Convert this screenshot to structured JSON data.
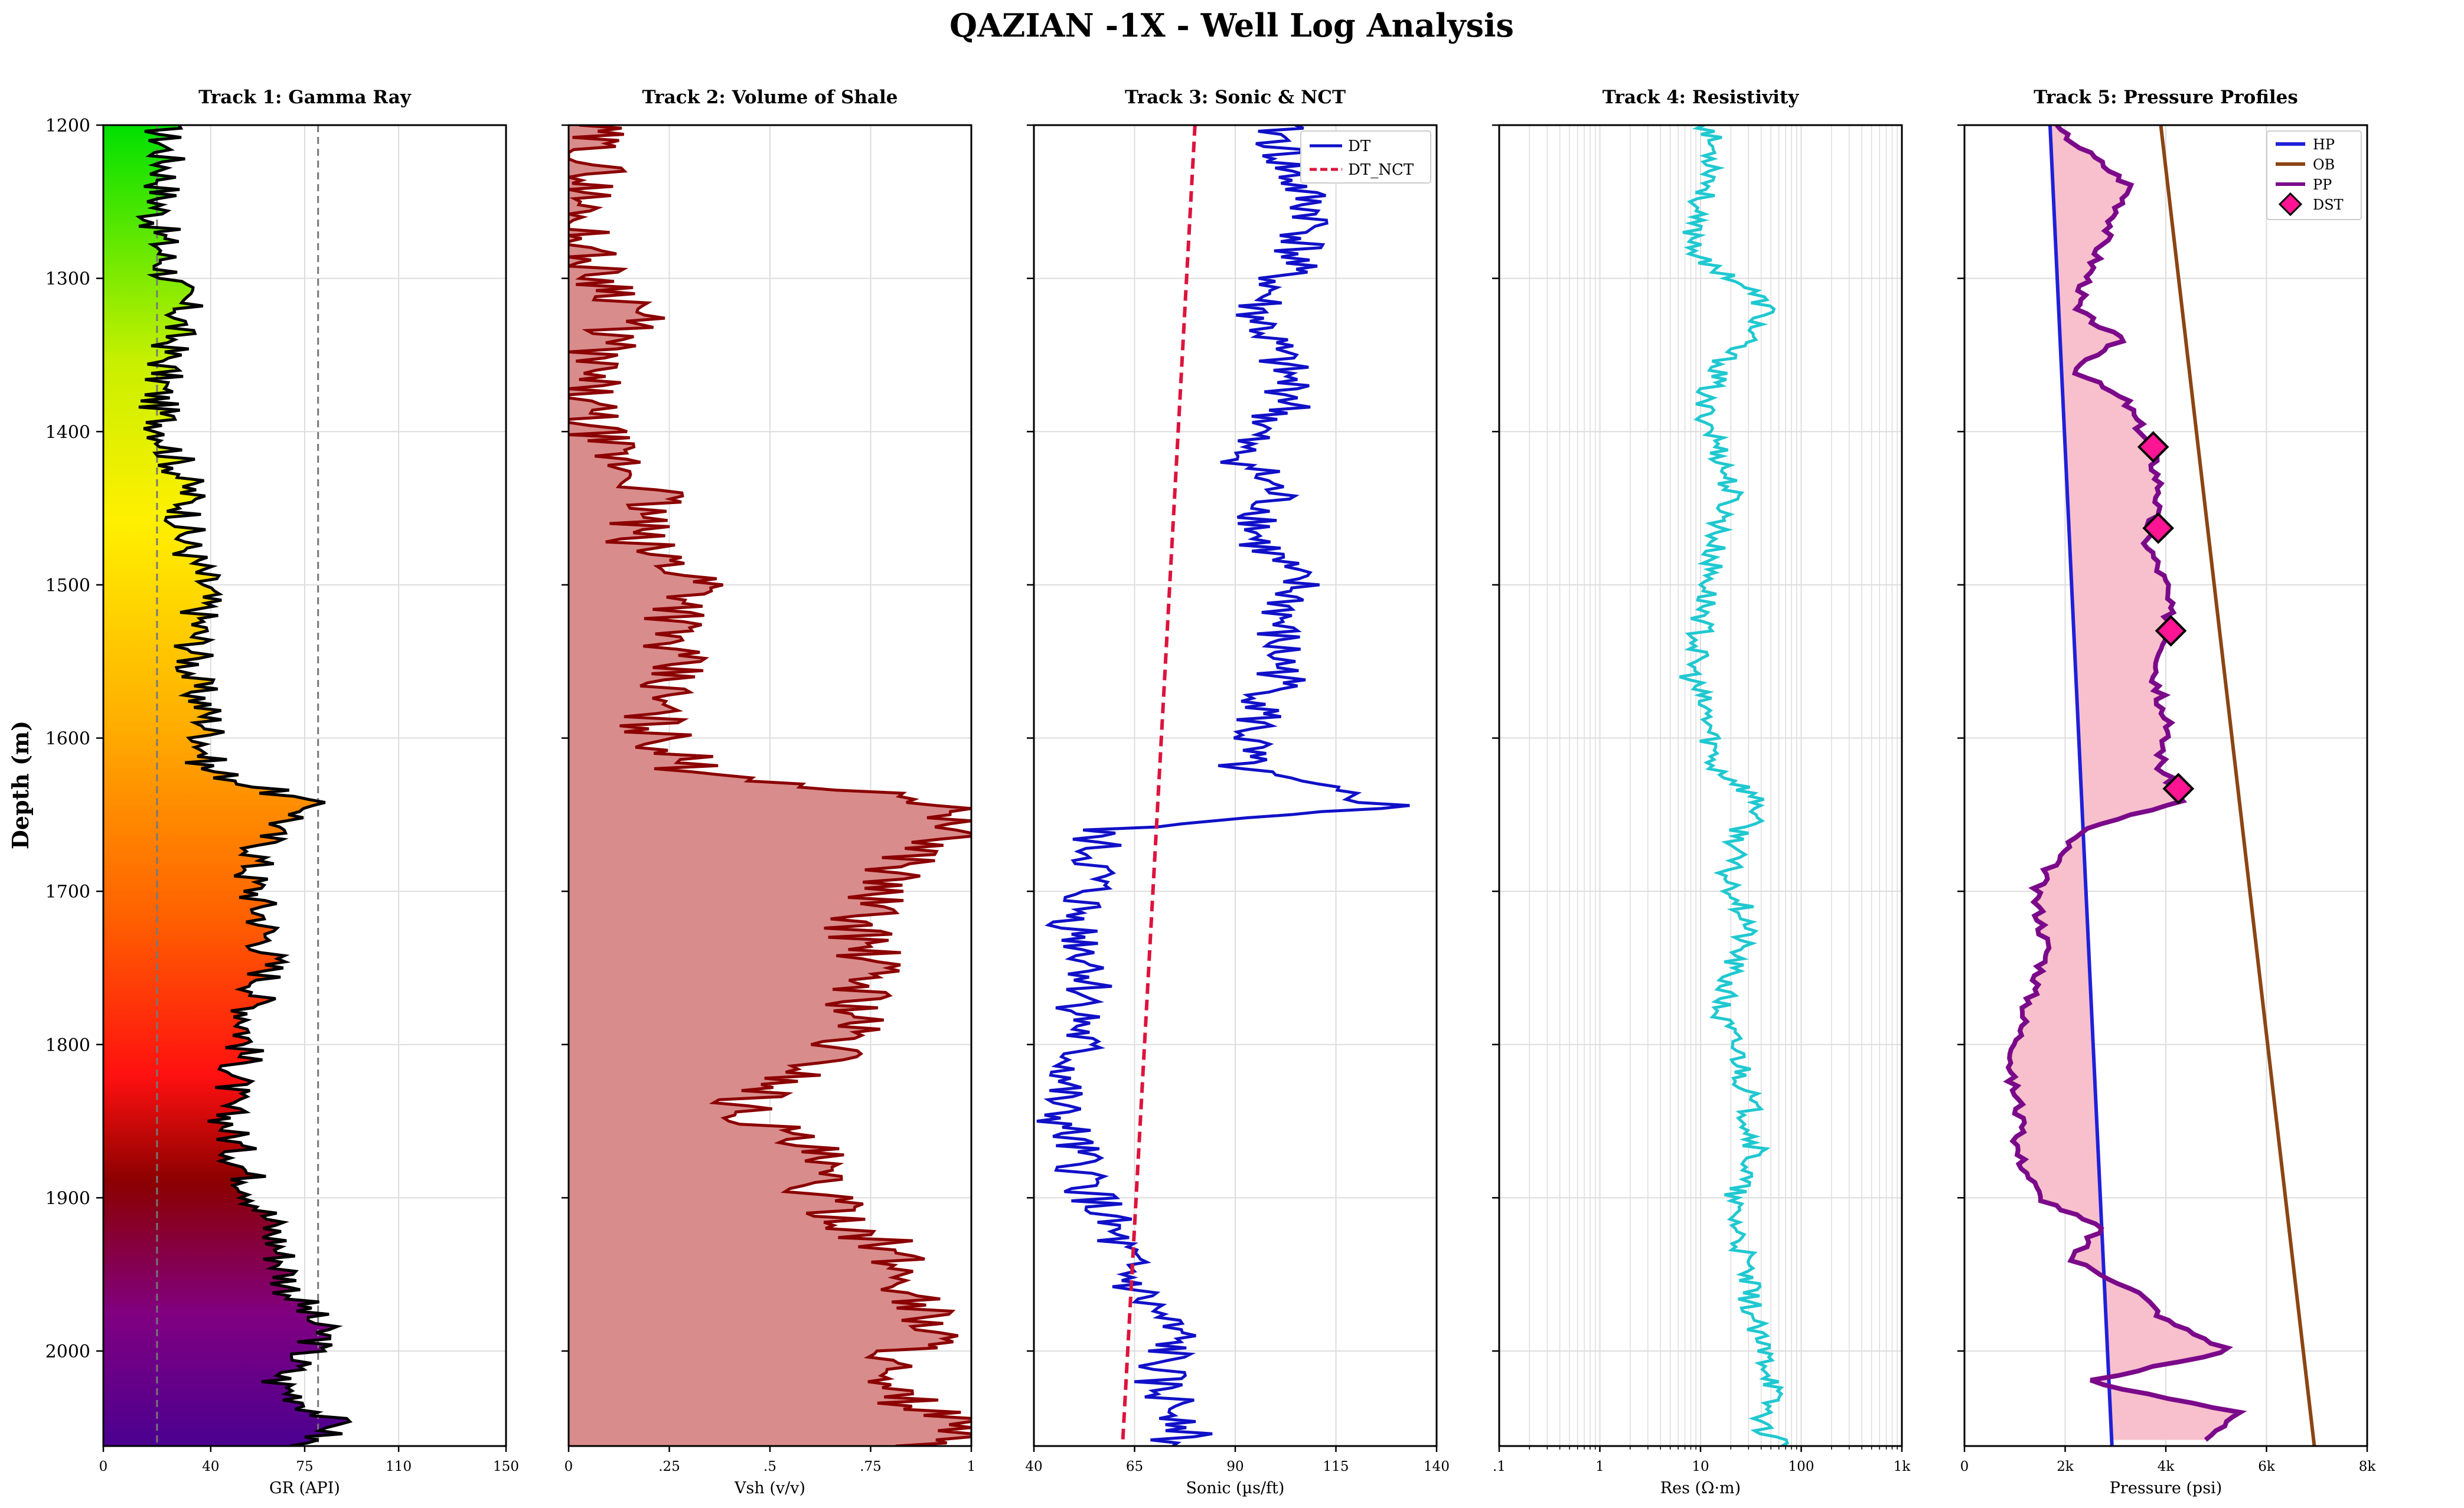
{
  "chart_data": {
    "type": "line",
    "title": "QAZIAN -1X - Well Log Analysis",
    "ylabel": "Depth (m)",
    "ylim": [
      2062,
      1200
    ],
    "yticks": [
      1200,
      1300,
      1400,
      1500,
      1600,
      1700,
      1800,
      1900,
      2000
    ],
    "colors": {
      "gr_line": "#000000",
      "vsh_line": "#8b0000",
      "vsh_fill": "#d98c8c",
      "dt_line": "#1010c8",
      "nct_line": "#dc143c",
      "res_line": "#20c8d0",
      "hp_line": "#2020d8",
      "ob_line": "#8b4513",
      "pp_line": "#7b0a8a",
      "pp_fill": "#f8c0cc",
      "dst_marker": "#ff1493",
      "grid": "#dddddd"
    },
    "tracks": [
      {
        "title": "Track 1: Gamma Ray",
        "xlabel": "GR (API)",
        "xlim": [
          0,
          150
        ],
        "xticks": [
          0,
          40,
          75,
          110,
          150
        ],
        "xtick_labels": [
          "0",
          "40",
          "75",
          "110",
          "150"
        ],
        "cutoffs": [
          20,
          80
        ],
        "series": [
          {
            "name": "GR",
            "depth": [
              1200,
              1230,
              1260,
              1290,
              1320,
              1350,
              1380,
              1410,
              1440,
              1470,
              1500,
              1530,
              1560,
              1590,
              1620,
              1645,
              1660,
              1690,
              1720,
              1750,
              1780,
              1810,
              1840,
              1870,
              1900,
              1930,
              1960,
              1990,
              2020,
              2050,
              2062
            ],
            "values": [
              22,
              24,
              20,
              23,
              30,
              24,
              20,
              25,
              32,
              30,
              38,
              35,
              33,
              40,
              38,
              80,
              62,
              55,
              60,
              62,
              55,
              52,
              45,
              50,
              58,
              65,
              70,
              82,
              65,
              88,
              72
            ]
          }
        ]
      },
      {
        "title": "Track 2: Volume of Shale",
        "xlabel": "Vsh (v/v)",
        "xlim": [
          0,
          1
        ],
        "xticks": [
          0,
          0.25,
          0.5,
          0.75,
          1
        ],
        "xtick_labels": [
          "0",
          ".25",
          ".5",
          ".75",
          "1"
        ],
        "series": [
          {
            "name": "Vsh",
            "depth": [
              1200,
              1230,
              1260,
              1290,
              1320,
              1350,
              1380,
              1410,
              1440,
              1470,
              1500,
              1530,
              1560,
              1590,
              1620,
              1645,
              1660,
              1690,
              1720,
              1750,
              1780,
              1810,
              1840,
              1870,
              1900,
              1930,
              1960,
              1990,
              2020,
              2050,
              2062
            ],
            "values": [
              0.05,
              0.06,
              0.02,
              0.04,
              0.18,
              0.06,
              0.03,
              0.08,
              0.22,
              0.15,
              0.35,
              0.25,
              0.25,
              0.2,
              0.3,
              1.0,
              0.95,
              0.8,
              0.72,
              0.75,
              0.72,
              0.65,
              0.42,
              0.6,
              0.62,
              0.78,
              0.85,
              0.92,
              0.72,
              1.0,
              0.9
            ]
          }
        ]
      },
      {
        "title": "Track 3: Sonic & NCT",
        "xlabel": "Sonic (µs/ft)",
        "xlim": [
          40,
          140
        ],
        "xticks": [
          40,
          65,
          90,
          115,
          140
        ],
        "xtick_labels": [
          "40",
          "65",
          "90",
          "115",
          "140"
        ],
        "legend": [
          "DT",
          "DT_NCT"
        ],
        "series": [
          {
            "name": "DT",
            "depth": [
              1200,
              1230,
              1260,
              1290,
              1320,
              1350,
              1380,
              1410,
              1440,
              1470,
              1500,
              1530,
              1560,
              1590,
              1620,
              1645,
              1660,
              1690,
              1720,
              1750,
              1780,
              1810,
              1840,
              1870,
              1900,
              1930,
              1960,
              1990,
              2020,
              2050,
              2062
            ],
            "values": [
              100,
              103,
              110,
              104,
              95,
              100,
              105,
              90,
              100,
              95,
              105,
              100,
              102,
              95,
              90,
              130,
              55,
              55,
              50,
              55,
              52,
              50,
              45,
              50,
              55,
              60,
              65,
              75,
              70,
              80,
              72
            ]
          },
          {
            "name": "DT_NCT",
            "depth": [
              1200,
              2062
            ],
            "values": [
              80,
              62
            ]
          }
        ]
      },
      {
        "title": "Track 4: Resistivity",
        "xlabel": "Res (Ω·m)",
        "xlim": [
          0.1,
          1000
        ],
        "scale": "log",
        "xticks": [
          0.1,
          1,
          10,
          100,
          1000
        ],
        "xtick_labels": [
          ".1",
          "1",
          "10",
          "100",
          "1k"
        ],
        "series": [
          {
            "name": "Res",
            "depth": [
              1200,
              1230,
              1260,
              1290,
              1320,
              1350,
              1380,
              1410,
              1440,
              1470,
              1500,
              1530,
              1560,
              1590,
              1620,
              1645,
              1660,
              1690,
              1720,
              1750,
              1780,
              1810,
              1840,
              1870,
              1900,
              1930,
              1960,
              1990,
              2020,
              2050,
              2062
            ],
            "values": [
              12,
              14,
              8,
              10,
              45,
              18,
              10,
              15,
              20,
              14,
              12,
              10,
              8,
              12,
              14,
              40,
              25,
              18,
              30,
              20,
              15,
              25,
              30,
              35,
              20,
              25,
              30,
              35,
              55,
              40,
              70
            ]
          }
        ]
      },
      {
        "title": "Track 5: Pressure Profiles",
        "xlabel": "Pressure (psi)",
        "xlim": [
          0,
          8000
        ],
        "xticks": [
          0,
          2000,
          4000,
          6000,
          8000
        ],
        "xtick_labels": [
          "0",
          "2k",
          "4k",
          "6k",
          "8k"
        ],
        "legend": [
          "HP",
          "OB",
          "PP",
          "DST"
        ],
        "series": [
          {
            "name": "HP",
            "depth": [
              1200,
              2062
            ],
            "values": [
              1700,
              2930
            ]
          },
          {
            "name": "OB",
            "depth": [
              1200,
              2062
            ],
            "values": [
              3900,
              6950
            ]
          },
          {
            "name": "PP",
            "depth": [
              1200,
              1240,
              1280,
              1320,
              1340,
              1360,
              1380,
              1410,
              1440,
              1470,
              1500,
              1530,
              1560,
              1590,
              1620,
              1640,
              1660,
              1680,
              1700,
              1740,
              1780,
              1820,
              1840,
              1870,
              1900,
              1920,
              1940,
              1960,
              1980,
              2000,
              2020,
              2040,
              2060
            ],
            "values": [
              1750,
              3300,
              2700,
              2200,
              3100,
              2200,
              3200,
              3700,
              3900,
              3600,
              4000,
              4100,
              3800,
              4000,
              3900,
              4400,
              2300,
              1800,
              1400,
              1650,
              1200,
              900,
              1100,
              1050,
              1500,
              2700,
              2100,
              3400,
              4000,
              5300,
              2400,
              5500,
              4600
            ]
          },
          {
            "name": "DST",
            "depth": [
              1410,
              1463,
              1530,
              1633
            ],
            "values": [
              3750,
              3850,
              4100,
              4250
            ]
          }
        ]
      }
    ]
  }
}
